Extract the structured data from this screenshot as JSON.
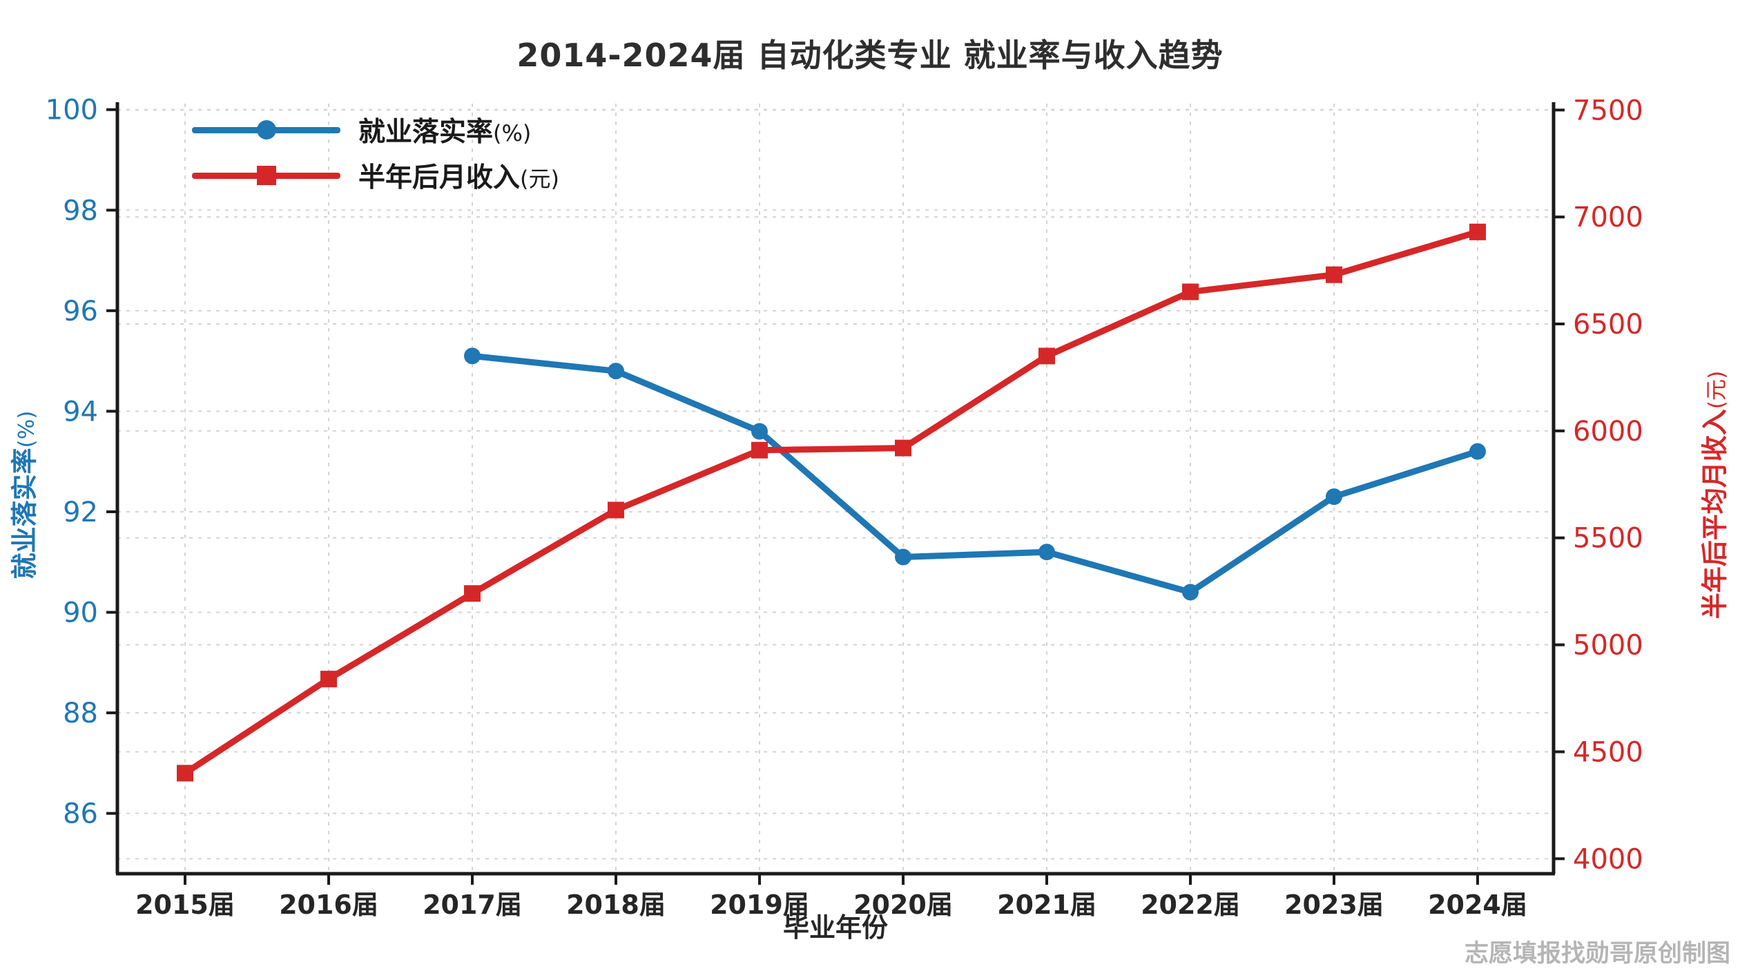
{
  "watermark": "志愿填报找勋哥原创制图",
  "chart_data": {
    "type": "line",
    "title": "2014-2024届 自动化类专业 就业率与收入趋势",
    "categories": [
      "2015届",
      "2016届",
      "2017届",
      "2018届",
      "2019届",
      "2020届",
      "2021届",
      "2022届",
      "2023届",
      "2024届"
    ],
    "series": [
      {
        "name": "就业落实率",
        "unit": "(%)",
        "full_label": "就业落实率(%)",
        "color": "#1f77b4",
        "marker": "circle",
        "axis": "left",
        "values": [
          null,
          null,
          95.1,
          94.8,
          93.6,
          91.1,
          91.2,
          90.4,
          92.3,
          93.2
        ]
      },
      {
        "name": "半年后月收入",
        "unit": "(元)",
        "full_label": "半年后月收入(元)",
        "color": "#d62728",
        "marker": "square",
        "axis": "right",
        "values": [
          4400,
          4840,
          5240,
          5630,
          5910,
          5920,
          6350,
          6650,
          6730,
          6930
        ]
      }
    ],
    "left_axis": {
      "label": "就业落实率",
      "unit": "(%)",
      "color": "#1f77b4",
      "ticks": [
        86,
        88,
        90,
        92,
        94,
        96,
        98,
        100
      ],
      "range": [
        84.8,
        100.12
      ]
    },
    "right_axis": {
      "label": "半年后平均月收入",
      "unit": "(元)",
      "color": "#d62728",
      "ticks": [
        4000,
        4500,
        5000,
        5500,
        6000,
        6500,
        7000,
        7500
      ],
      "range": [
        3930,
        7530
      ]
    },
    "x_axis": {
      "label": "毕业年份",
      "tick_color": "#262626"
    },
    "legend_position": "top-left",
    "grid": true
  }
}
